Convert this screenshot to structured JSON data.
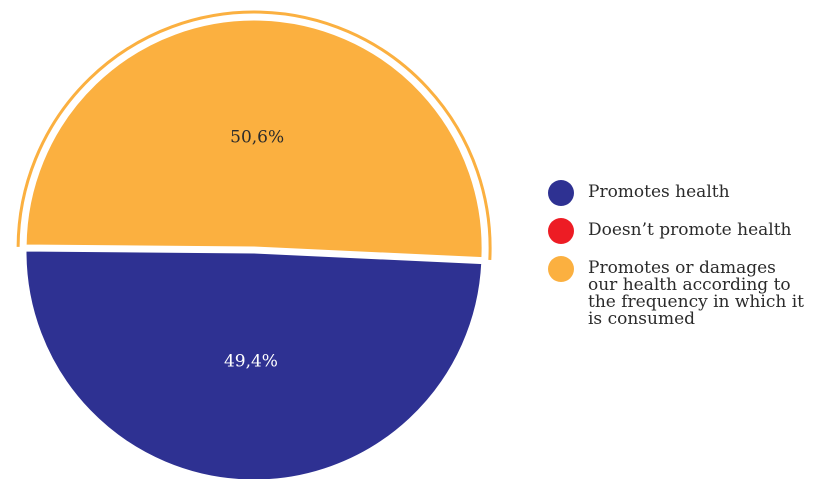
{
  "chart_data": {
    "type": "pie",
    "slices": [
      {
        "label": "Promotes or damages our health according to the frequency in which it is consumed",
        "value": 50.6,
        "display": "50,6%",
        "color": "#FBB040",
        "text_color": "#2b2b2b",
        "exploded": true
      },
      {
        "label": "Promotes health",
        "value": 49.4,
        "display": "49,4%",
        "color": "#2E3192",
        "text_color": "#ffffff",
        "exploded": false
      }
    ],
    "legend": [
      {
        "label": "Promotes health",
        "color": "#2E3192"
      },
      {
        "label": "Doesn’t promote health",
        "color": "#ED1C24"
      },
      {
        "label": "Promotes or damages our health according to the frequency in which it is consumed",
        "color": "#FBB040"
      }
    ],
    "legend_position": "right"
  }
}
